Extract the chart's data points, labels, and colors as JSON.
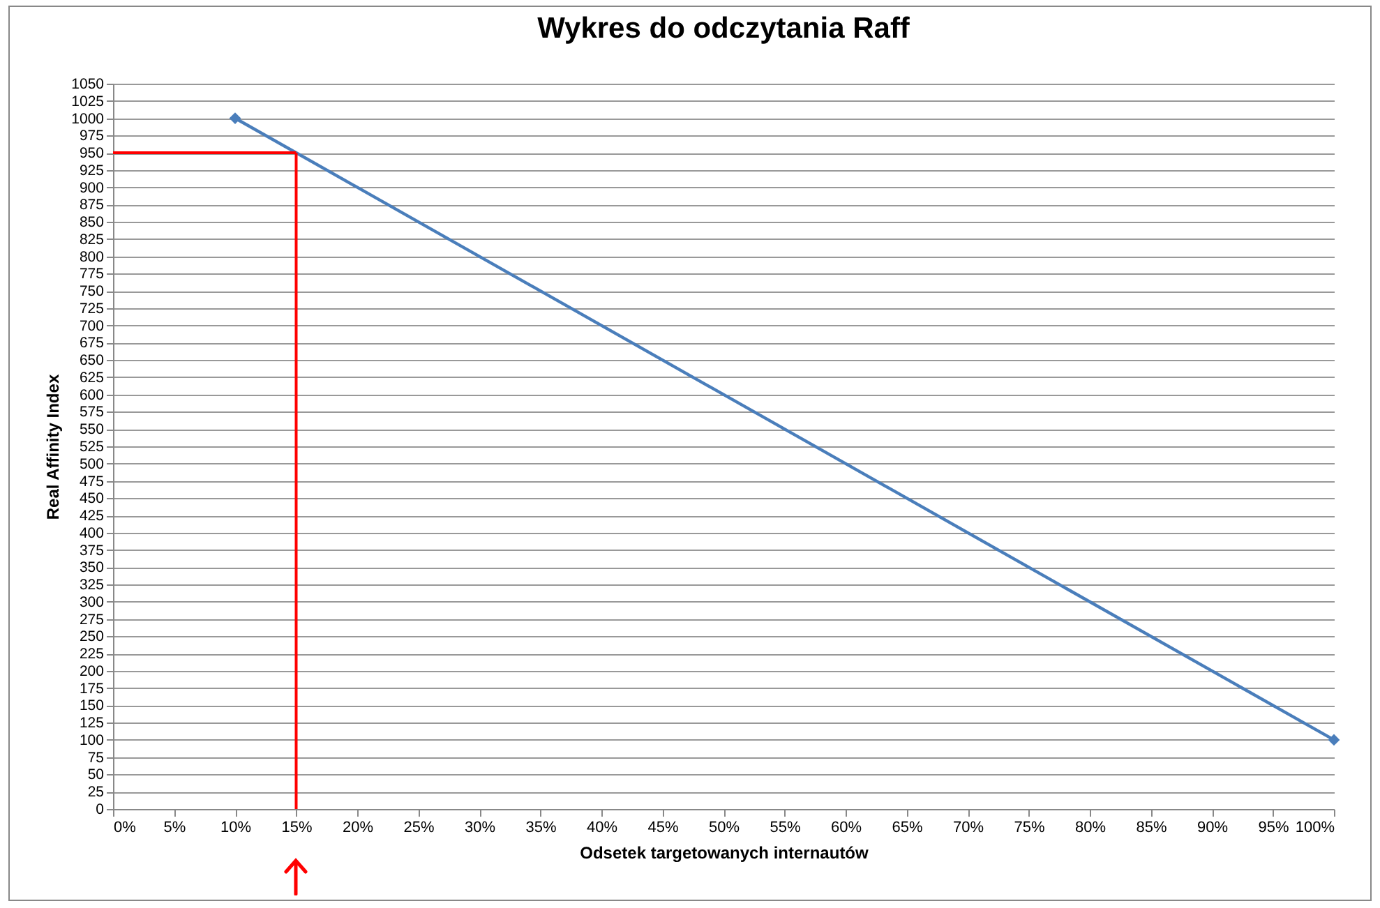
{
  "chart_data": {
    "type": "line",
    "title": "Wykres do odczytania Raff",
    "xlabel": "Odsetek targetowanych internautów",
    "ylabel": "Real Affinity Index",
    "x": [
      10,
      100
    ],
    "series": [
      {
        "color": "#4a7ebb",
        "values": [
          1000,
          100
        ]
      }
    ],
    "marker": "diamond",
    "grid": "y",
    "xlim": [
      0,
      100
    ],
    "xticks": [
      {
        "value": 0,
        "label": "0%"
      },
      {
        "value": 5,
        "label": "5%"
      },
      {
        "value": 10,
        "label": "10%"
      },
      {
        "value": 15,
        "label": "15%"
      },
      {
        "value": 20,
        "label": "20%"
      },
      {
        "value": 25,
        "label": "25%"
      },
      {
        "value": 30,
        "label": "30%"
      },
      {
        "value": 35,
        "label": "35%"
      },
      {
        "value": 40,
        "label": "40%"
      },
      {
        "value": 45,
        "label": "45%"
      },
      {
        "value": 50,
        "label": "50%"
      },
      {
        "value": 55,
        "label": "55%"
      },
      {
        "value": 60,
        "label": "60%"
      },
      {
        "value": 65,
        "label": "65%"
      },
      {
        "value": 70,
        "label": "70%"
      },
      {
        "value": 75,
        "label": "75%"
      },
      {
        "value": 80,
        "label": "80%"
      },
      {
        "value": 85,
        "label": "85%"
      },
      {
        "value": 90,
        "label": "90%"
      },
      {
        "value": 95,
        "label": "95%"
      },
      {
        "value": 100,
        "label": "100%"
      }
    ],
    "ylim": [
      0,
      1050
    ],
    "yticks": [
      0,
      25,
      50,
      75,
      100,
      125,
      150,
      175,
      200,
      225,
      250,
      275,
      300,
      325,
      350,
      375,
      400,
      425,
      450,
      475,
      500,
      525,
      550,
      575,
      600,
      625,
      650,
      675,
      700,
      725,
      750,
      775,
      800,
      825,
      850,
      875,
      900,
      925,
      950,
      975,
      1000,
      1025,
      1050
    ],
    "ref_lines": [
      {
        "axis": "x",
        "value": 15,
        "color": "#ff0000"
      },
      {
        "axis": "y",
        "value": 950,
        "color": "#ff0000"
      }
    ]
  }
}
